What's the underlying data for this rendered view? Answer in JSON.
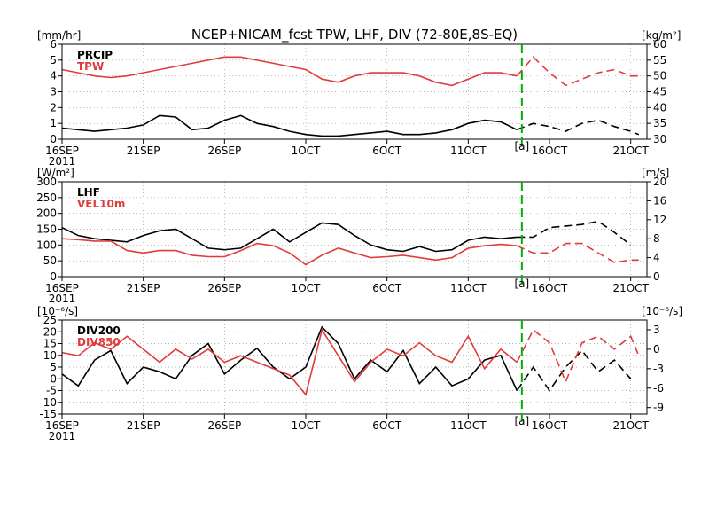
{
  "title": "NCEP+NICAM_fcst TPW, LHF, DIV (72-80E,8S-EQ)",
  "colors": {
    "black": "#000000",
    "red": "#e03c3c",
    "marker": "#00b000",
    "grid": "#9a9a9a"
  },
  "time_axis": {
    "year_label": "2011",
    "ticks": [
      {
        "day": 0,
        "label": "16SEP"
      },
      {
        "day": 5,
        "label": "21SEP"
      },
      {
        "day": 10,
        "label": "26SEP"
      },
      {
        "day": 15,
        "label": "1OCT"
      },
      {
        "day": 20,
        "label": "6OCT"
      },
      {
        "day": 25,
        "label": "11OCT"
      },
      {
        "day": 30,
        "label": "16OCT"
      },
      {
        "day": 35,
        "label": "21OCT"
      }
    ],
    "forecast_start_day": 28.3,
    "forecast_label": "[a]"
  },
  "chart_data": [
    {
      "type": "line",
      "left_unit": "[mm/hr]",
      "right_unit": "[kg/m²]",
      "left_ticks": [
        0,
        1,
        2,
        3,
        4,
        5,
        6
      ],
      "right_ticks": [
        30,
        35,
        40,
        45,
        50,
        55,
        60
      ],
      "ylim_left": [
        0,
        6
      ],
      "ylim_right": [
        30,
        60
      ],
      "series": [
        {
          "name": "PRCIP",
          "color": "black",
          "axis": "left",
          "x": [
            0,
            1,
            2,
            3,
            4,
            5,
            6,
            7,
            8,
            9,
            10,
            11,
            12,
            13,
            14,
            15,
            16,
            17,
            18,
            19,
            20,
            21,
            22,
            23,
            24,
            25,
            26,
            27,
            28,
            29,
            30,
            31,
            32,
            33,
            34,
            35,
            35.5
          ],
          "y": [
            0.7,
            0.6,
            0.5,
            0.6,
            0.7,
            0.9,
            1.5,
            1.4,
            0.6,
            0.7,
            1.2,
            1.5,
            1.0,
            0.8,
            0.5,
            0.3,
            0.2,
            0.2,
            0.3,
            0.4,
            0.5,
            0.3,
            0.3,
            0.4,
            0.6,
            1.0,
            1.2,
            1.1,
            0.6,
            1.0,
            0.8,
            0.5,
            1.0,
            1.2,
            0.8,
            0.5,
            0.3
          ],
          "forecast_from": 28.3
        },
        {
          "name": "TPW",
          "color": "red",
          "axis": "right",
          "x": [
            0,
            1,
            2,
            3,
            4,
            5,
            6,
            7,
            8,
            9,
            10,
            11,
            12,
            13,
            14,
            15,
            16,
            17,
            18,
            19,
            20,
            21,
            22,
            23,
            24,
            25,
            26,
            27,
            28,
            29,
            30,
            31,
            32,
            33,
            34,
            35,
            35.5
          ],
          "y": [
            52,
            51,
            50,
            49.5,
            50,
            51,
            52,
            53,
            54,
            55,
            56,
            56,
            55,
            54,
            53,
            52,
            49,
            48,
            50,
            51,
            51,
            51,
            50,
            48,
            47,
            49,
            51,
            51,
            50,
            56,
            51,
            47,
            49,
            51,
            52,
            50,
            50
          ],
          "forecast_from": 28.3
        }
      ]
    },
    {
      "type": "line",
      "left_unit": "[W/m²]",
      "right_unit": "[m/s]",
      "left_ticks": [
        0,
        50,
        100,
        150,
        200,
        250,
        300
      ],
      "right_ticks": [
        0,
        4,
        8,
        12,
        16,
        20
      ],
      "ylim_left": [
        0,
        300
      ],
      "ylim_right": [
        0,
        20
      ],
      "series": [
        {
          "name": "LHF",
          "color": "black",
          "axis": "left",
          "x": [
            0,
            1,
            2,
            3,
            4,
            5,
            6,
            7,
            8,
            9,
            10,
            11,
            12,
            13,
            14,
            15,
            16,
            17,
            18,
            19,
            20,
            21,
            22,
            23,
            24,
            25,
            26,
            27,
            28,
            29,
            30,
            31,
            32,
            33,
            34,
            35
          ],
          "y": [
            155,
            130,
            120,
            115,
            110,
            130,
            145,
            150,
            120,
            90,
            85,
            90,
            120,
            150,
            110,
            140,
            170,
            165,
            130,
            100,
            85,
            80,
            95,
            80,
            85,
            115,
            125,
            120,
            125,
            125,
            155,
            160,
            165,
            175,
            140,
            100
          ],
          "forecast_from": 28.3
        },
        {
          "name": "VEL10m",
          "color": "red",
          "axis": "right",
          "x": [
            0,
            1,
            2,
            3,
            4,
            5,
            6,
            7,
            8,
            9,
            10,
            11,
            12,
            13,
            14,
            15,
            16,
            17,
            18,
            19,
            20,
            21,
            22,
            23,
            24,
            25,
            26,
            27,
            28,
            29,
            30,
            31,
            32,
            33,
            34,
            35,
            35.5
          ],
          "y": [
            8,
            7.8,
            7.5,
            7.5,
            5.5,
            5,
            5.5,
            5.5,
            4.5,
            4.2,
            4.2,
            5.5,
            7,
            6.5,
            5,
            2.5,
            4.5,
            6,
            5,
            4,
            4.2,
            4.5,
            4,
            3.5,
            4,
            6,
            6.5,
            6.8,
            6.5,
            5,
            5,
            7,
            7,
            5,
            3,
            3.5,
            3.5
          ],
          "forecast_from": 28.3
        }
      ]
    },
    {
      "type": "line",
      "left_unit": "[10⁻⁶/s]",
      "right_unit": "[10⁻⁶/s]",
      "left_ticks": [
        -15,
        -10,
        -5,
        0,
        5,
        10,
        15,
        20,
        25
      ],
      "right_ticks": [
        -9,
        -6,
        -3,
        0,
        3
      ],
      "ylim_left": [
        -15,
        25
      ],
      "ylim_right": [
        -10,
        4.5
      ],
      "series": [
        {
          "name": "DIV200",
          "color": "black",
          "axis": "left",
          "x": [
            0,
            1,
            2,
            3,
            4,
            5,
            6,
            7,
            8,
            9,
            10,
            11,
            12,
            13,
            14,
            15,
            16,
            17,
            18,
            19,
            20,
            21,
            22,
            23,
            24,
            25,
            26,
            27,
            28,
            29,
            30,
            31,
            32,
            33,
            34,
            35
          ],
          "y": [
            2,
            -3,
            8,
            12,
            -2,
            5,
            3,
            0,
            10,
            15,
            2,
            8,
            13,
            5,
            0,
            5,
            22,
            15,
            0,
            8,
            3,
            12,
            -2,
            5,
            -3,
            0,
            8,
            10,
            -5,
            5,
            -5,
            5,
            12,
            3,
            8,
            0
          ],
          "forecast_from": 28.3
        },
        {
          "name": "DIV850",
          "color": "red",
          "axis": "right",
          "x": [
            0,
            1,
            2,
            3,
            4,
            5,
            6,
            7,
            8,
            9,
            10,
            11,
            12,
            13,
            14,
            15,
            16,
            17,
            18,
            19,
            20,
            21,
            22,
            23,
            24,
            25,
            26,
            27,
            28,
            29,
            30,
            31,
            32,
            33,
            34,
            35,
            35.5
          ],
          "y": [
            -0.5,
            -1,
            1,
            0,
            2,
            0,
            -2,
            0,
            -1.5,
            0,
            -2,
            -1,
            -2,
            -3,
            -4,
            -7,
            3,
            -1,
            -5,
            -2,
            0,
            -1,
            1,
            -1,
            -2,
            2,
            -3,
            0,
            -2,
            3,
            1,
            -5,
            1,
            2,
            0,
            2,
            -1
          ],
          "forecast_from": 28.3
        }
      ]
    }
  ]
}
